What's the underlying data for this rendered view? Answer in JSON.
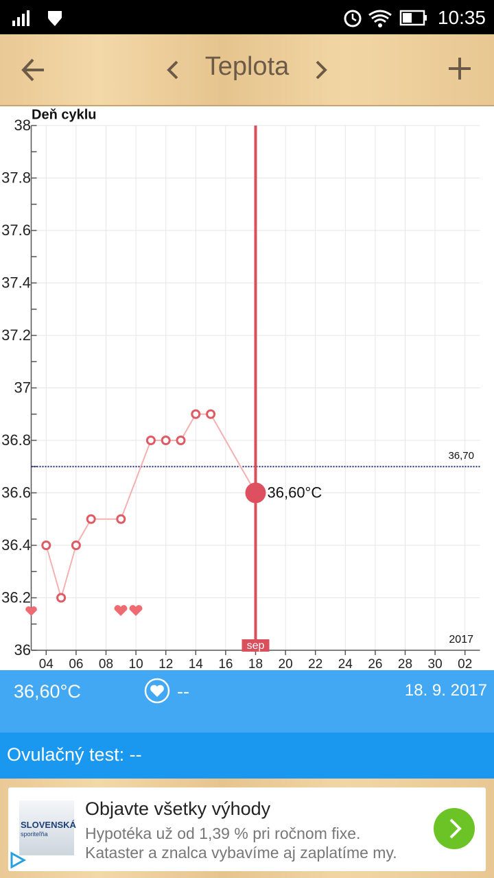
{
  "status_bar": {
    "time": "10:35"
  },
  "toolbar": {
    "title": "Teplota"
  },
  "chart_data": {
    "type": "line",
    "y_label": "Deň cyklu",
    "x": [
      4,
      5,
      6,
      7,
      9,
      11,
      12,
      13,
      14,
      15,
      18
    ],
    "values": [
      36.4,
      36.2,
      36.4,
      36.5,
      36.5,
      36.8,
      36.8,
      36.8,
      36.9,
      36.9,
      36.6
    ],
    "value_labels": [
      null,
      null,
      null,
      null,
      null,
      null,
      null,
      null,
      null,
      null,
      "36,60°C"
    ],
    "color": "#e05a64",
    "xlim": [
      3,
      33
    ],
    "xticks": [
      {
        "value": 4,
        "label": "04"
      },
      {
        "value": 6,
        "label": "06"
      },
      {
        "value": 8,
        "label": "08"
      },
      10,
      12,
      14,
      16,
      18,
      20,
      22,
      24,
      26,
      28,
      30,
      {
        "value": 32,
        "label": "02"
      }
    ],
    "ylim": [
      36,
      38
    ],
    "yticks": [
      36,
      36.2,
      36.4,
      36.6,
      36.8,
      37,
      37.2,
      37.4,
      37.6,
      37.8,
      38
    ],
    "grid": true,
    "reference_line": {
      "value": 36.7,
      "label": "36,70"
    },
    "month_label": "sep",
    "year_label": "2017"
  },
  "info": {
    "temperature": "36,60°C",
    "sex": "--",
    "date": "18. 9. 2017",
    "ovulation_test": "Ovulačný test: --"
  },
  "ad": {
    "logo": "SLOVENSKÁ",
    "logo_sub": "sporiteľňa",
    "title": "Objavte všetky výhody",
    "line1": "Hypotéka už od 1,39 % pri ročnom fixe.",
    "line2": "Kataster a znalca vybavíme aj zaplatíme my."
  }
}
